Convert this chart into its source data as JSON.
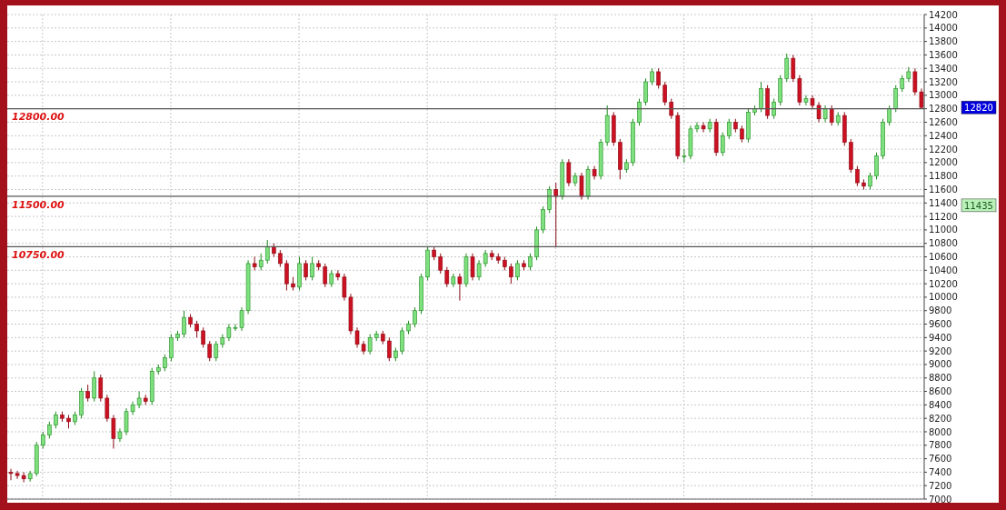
{
  "chart_data": {
    "type": "candlestick",
    "categories": [
      null,
      null,
      null,
      null,
      null,
      null,
      null,
      null,
      null,
      null,
      null,
      null,
      null,
      null,
      null,
      null,
      null,
      null,
      null,
      null,
      null,
      null,
      null,
      null,
      null,
      null,
      null,
      null,
      null,
      null,
      null,
      null,
      null,
      null,
      null,
      null,
      null,
      null,
      null,
      null,
      null,
      null,
      null,
      null,
      null,
      null,
      null,
      null,
      null,
      null,
      null,
      null,
      null,
      null,
      null,
      null,
      null,
      null,
      null,
      null,
      null,
      null,
      null,
      null,
      null,
      null,
      null,
      null,
      null,
      null,
      null,
      null,
      null,
      null,
      null,
      null,
      null,
      null,
      null,
      null,
      null,
      null,
      null,
      null,
      null,
      null,
      null,
      null,
      null,
      null,
      null,
      null,
      null,
      null,
      null,
      null,
      null,
      null,
      null,
      null,
      null,
      null,
      null,
      null,
      null,
      null,
      null,
      null,
      null,
      null,
      null,
      null,
      null,
      null,
      null,
      null,
      null,
      null,
      null,
      null,
      null,
      null,
      null,
      null,
      null,
      null,
      null,
      null,
      null,
      null,
      null,
      null,
      null,
      null,
      null,
      null,
      null,
      null,
      null,
      null,
      null,
      null,
      null
    ],
    "ohlc": [
      [
        7400,
        7450,
        7280,
        7380
      ],
      [
        7380,
        7420,
        7300,
        7350
      ],
      [
        7350,
        7400,
        7250,
        7300
      ],
      [
        7300,
        7420,
        7260,
        7380
      ],
      [
        7380,
        7850,
        7340,
        7800
      ],
      [
        7800,
        8000,
        7750,
        7950
      ],
      [
        7950,
        8150,
        7900,
        8100
      ],
      [
        8100,
        8300,
        8050,
        8250
      ],
      [
        8250,
        8300,
        8150,
        8200
      ],
      [
        8200,
        8250,
        8050,
        8150
      ],
      [
        8150,
        8300,
        8100,
        8250
      ],
      [
        8250,
        8650,
        8200,
        8600
      ],
      [
        8600,
        8700,
        8450,
        8500
      ],
      [
        8500,
        8900,
        8450,
        8800
      ],
      [
        8800,
        8850,
        8450,
        8500
      ],
      [
        8500,
        8550,
        8150,
        8200
      ],
      [
        8200,
        8250,
        7750,
        7900
      ],
      [
        7900,
        8050,
        7850,
        8000
      ],
      [
        8000,
        8350,
        7950,
        8300
      ],
      [
        8300,
        8450,
        8250,
        8400
      ],
      [
        8400,
        8600,
        8350,
        8500
      ],
      [
        8500,
        8550,
        8400,
        8450
      ],
      [
        8450,
        8950,
        8400,
        8900
      ],
      [
        8900,
        9000,
        8850,
        8950
      ],
      [
        8950,
        9150,
        8900,
        9100
      ],
      [
        9100,
        9450,
        9050,
        9400
      ],
      [
        9400,
        9500,
        9350,
        9450
      ],
      [
        9450,
        9800,
        9400,
        9700
      ],
      [
        9700,
        9750,
        9550,
        9600
      ],
      [
        9600,
        9650,
        9400,
        9500
      ],
      [
        9500,
        9550,
        9250,
        9300
      ],
      [
        9300,
        9350,
        9050,
        9100
      ],
      [
        9100,
        9350,
        9050,
        9300
      ],
      [
        9300,
        9450,
        9250,
        9400
      ],
      [
        9400,
        9600,
        9350,
        9550
      ],
      [
        9550,
        9600,
        9500,
        9550
      ],
      [
        9550,
        9850,
        9500,
        9800
      ],
      [
        9800,
        10550,
        9750,
        10500
      ],
      [
        10500,
        10600,
        10400,
        10450
      ],
      [
        10450,
        10650,
        10400,
        10550
      ],
      [
        10550,
        10850,
        10500,
        10750
      ],
      [
        10750,
        10800,
        10600,
        10650
      ],
      [
        10650,
        10700,
        10450,
        10500
      ],
      [
        10500,
        10550,
        10100,
        10200
      ],
      [
        10200,
        10300,
        10100,
        10150
      ],
      [
        10150,
        10600,
        10100,
        10500
      ],
      [
        10500,
        10550,
        10250,
        10300
      ],
      [
        10300,
        10600,
        10250,
        10500
      ],
      [
        10500,
        10550,
        10400,
        10450
      ],
      [
        10450,
        10500,
        10150,
        10200
      ],
      [
        10200,
        10400,
        10150,
        10350
      ],
      [
        10350,
        10400,
        10250,
        10300
      ],
      [
        10300,
        10350,
        9950,
        10000
      ],
      [
        10000,
        10050,
        9450,
        9500
      ],
      [
        9500,
        9550,
        9250,
        9300
      ],
      [
        9300,
        9350,
        9150,
        9200
      ],
      [
        9200,
        9450,
        9150,
        9400
      ],
      [
        9400,
        9500,
        9350,
        9450
      ],
      [
        9450,
        9500,
        9300,
        9350
      ],
      [
        9350,
        9400,
        9050,
        9100
      ],
      [
        9100,
        9250,
        9050,
        9200
      ],
      [
        9200,
        9550,
        9150,
        9500
      ],
      [
        9500,
        9650,
        9450,
        9600
      ],
      [
        9600,
        9850,
        9550,
        9800
      ],
      [
        9800,
        10350,
        9750,
        10300
      ],
      [
        10300,
        10750,
        10250,
        10700
      ],
      [
        10700,
        10750,
        10550,
        10600
      ],
      [
        10600,
        10650,
        10350,
        10400
      ],
      [
        10400,
        10450,
        10150,
        10200
      ],
      [
        10200,
        10350,
        10150,
        10300
      ],
      [
        10300,
        10350,
        9950,
        10200
      ],
      [
        10200,
        10650,
        10150,
        10600
      ],
      [
        10600,
        10650,
        10250,
        10300
      ],
      [
        10300,
        10550,
        10250,
        10500
      ],
      [
        10500,
        10700,
        10450,
        10650
      ],
      [
        10650,
        10700,
        10550,
        10600
      ],
      [
        10600,
        10650,
        10500,
        10550
      ],
      [
        10550,
        10600,
        10400,
        10450
      ],
      [
        10450,
        10500,
        10200,
        10300
      ],
      [
        10300,
        10550,
        10250,
        10500
      ],
      [
        10500,
        10550,
        10400,
        10450
      ],
      [
        10450,
        10650,
        10400,
        10600
      ],
      [
        10600,
        11050,
        10550,
        11000
      ],
      [
        11000,
        11350,
        10950,
        11300
      ],
      [
        11300,
        11650,
        11250,
        11600
      ],
      [
        11600,
        11700,
        10750,
        11500
      ],
      [
        11500,
        12050,
        11450,
        12000
      ],
      [
        12000,
        12050,
        11650,
        11700
      ],
      [
        11700,
        11850,
        11650,
        11800
      ],
      [
        11800,
        11850,
        11450,
        11500
      ],
      [
        11500,
        11950,
        11450,
        11900
      ],
      [
        11900,
        11950,
        11750,
        11800
      ],
      [
        11800,
        12350,
        11750,
        12300
      ],
      [
        12300,
        12850,
        12250,
        12700
      ],
      [
        12700,
        12750,
        12250,
        12300
      ],
      [
        12300,
        12350,
        11750,
        11900
      ],
      [
        11900,
        12050,
        11850,
        12000
      ],
      [
        12000,
        12650,
        11950,
        12600
      ],
      [
        12600,
        12950,
        12550,
        12900
      ],
      [
        12900,
        13250,
        12850,
        13200
      ],
      [
        13200,
        13400,
        13150,
        13350
      ],
      [
        13350,
        13400,
        13100,
        13150
      ],
      [
        13150,
        13200,
        12850,
        12900
      ],
      [
        12900,
        12950,
        12650,
        12700
      ],
      [
        12700,
        12750,
        12050,
        12100
      ],
      [
        12100,
        12200,
        12000,
        12100
      ],
      [
        12100,
        12550,
        12050,
        12500
      ],
      [
        12500,
        12600,
        12450,
        12550
      ],
      [
        12550,
        12600,
        12450,
        12500
      ],
      [
        12500,
        12650,
        12450,
        12600
      ],
      [
        12600,
        12650,
        12100,
        12150
      ],
      [
        12150,
        12450,
        12100,
        12400
      ],
      [
        12400,
        12650,
        12350,
        12600
      ],
      [
        12600,
        12650,
        12450,
        12500
      ],
      [
        12500,
        12550,
        12300,
        12350
      ],
      [
        12350,
        12800,
        12300,
        12750
      ],
      [
        12750,
        12850,
        12700,
        12800
      ],
      [
        12800,
        13200,
        12750,
        13100
      ],
      [
        13100,
        13150,
        12650,
        12700
      ],
      [
        12700,
        12950,
        12650,
        12900
      ],
      [
        12900,
        13300,
        12850,
        13250
      ],
      [
        13250,
        13620,
        13200,
        13550
      ],
      [
        13550,
        13600,
        13200,
        13250
      ],
      [
        13250,
        13300,
        12850,
        12900
      ],
      [
        12900,
        13000,
        12850,
        12950
      ],
      [
        12950,
        13000,
        12800,
        12850
      ],
      [
        12850,
        12900,
        12600,
        12650
      ],
      [
        12650,
        12850,
        12600,
        12800
      ],
      [
        12800,
        12850,
        12550,
        12600
      ],
      [
        12600,
        12750,
        12550,
        12700
      ],
      [
        12700,
        12750,
        12250,
        12300
      ],
      [
        12300,
        12350,
        11850,
        11900
      ],
      [
        11900,
        11950,
        11650,
        11700
      ],
      [
        11700,
        11750,
        11600,
        11650
      ],
      [
        11650,
        11850,
        11600,
        11800
      ],
      [
        11800,
        12150,
        11750,
        12100
      ],
      [
        12100,
        12650,
        12050,
        12600
      ],
      [
        12600,
        12850,
        12550,
        12800
      ],
      [
        12800,
        13150,
        12750,
        13100
      ],
      [
        13100,
        13300,
        13050,
        13250
      ],
      [
        13250,
        13420,
        13200,
        13350
      ],
      [
        13350,
        13400,
        13000,
        13050
      ],
      [
        13050,
        13100,
        12800,
        12820
      ]
    ],
    "ylim": [
      7000,
      14200
    ],
    "yticks": [
      7000,
      7200,
      7400,
      7600,
      7800,
      8000,
      8200,
      8400,
      8600,
      8800,
      9000,
      9200,
      9400,
      9600,
      9800,
      10000,
      10200,
      10400,
      10600,
      10800,
      11000,
      11200,
      11400,
      11600,
      11800,
      12000,
      12200,
      12400,
      12600,
      12800,
      13000,
      13200,
      13400,
      13600,
      13800,
      14000,
      14200
    ],
    "tick_labels": "y",
    "grid": true,
    "ref_lines": [
      {
        "axis": "y",
        "value": 12800,
        "label": "12800.00"
      },
      {
        "axis": "y",
        "value": 11500,
        "label": "11500.00"
      },
      {
        "axis": "y",
        "value": 10750,
        "label": "10750.00"
      }
    ],
    "annotations": [
      "12820",
      "11435"
    ]
  }
}
